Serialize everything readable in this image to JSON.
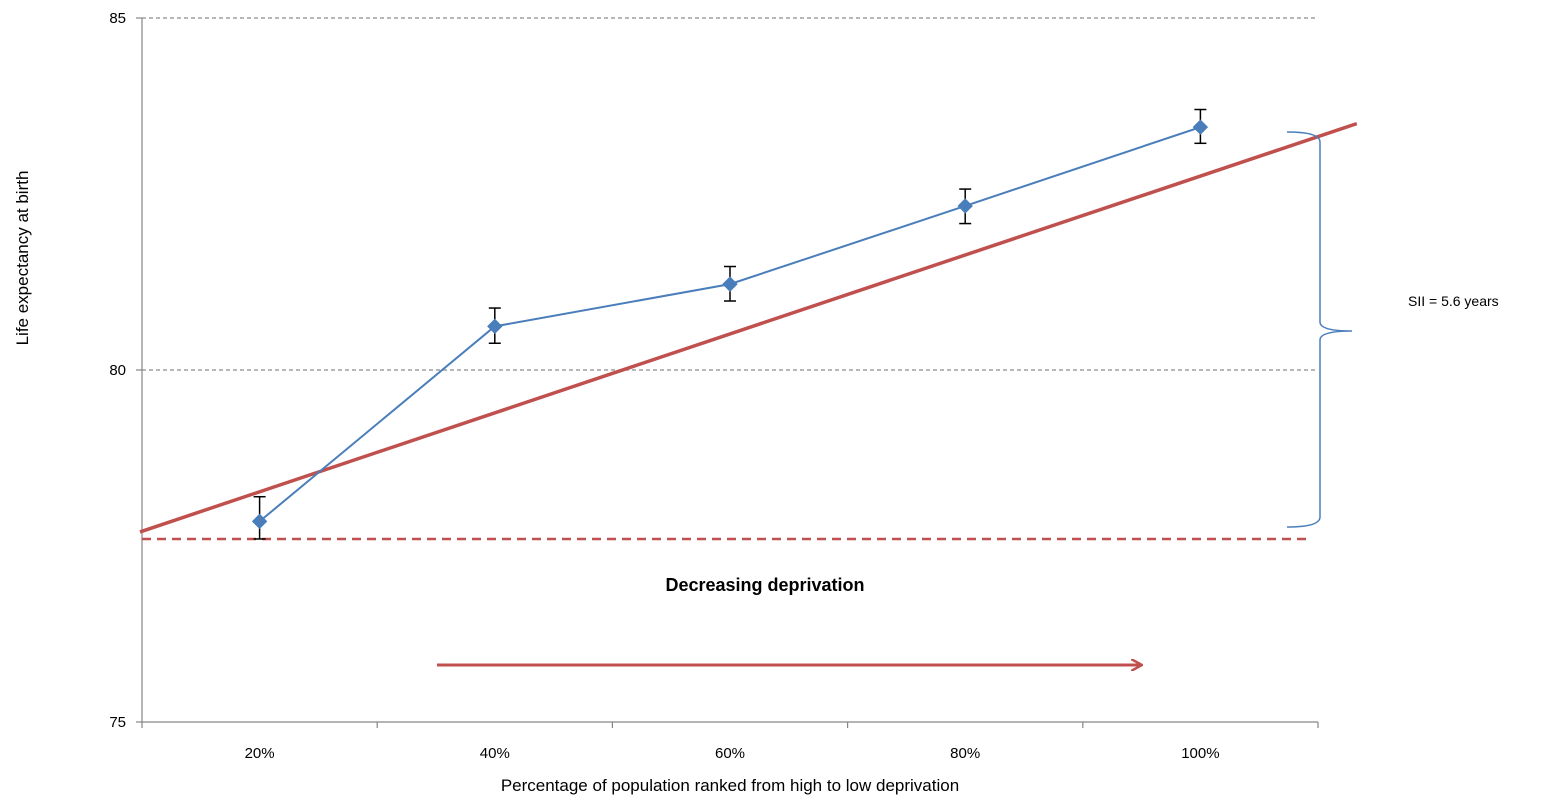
{
  "chart_data": {
    "type": "line",
    "xlabel": "Percentage of population ranked from high to low deprivation",
    "ylabel": "Life expectancy at birth",
    "categories": [
      "20%",
      "40%",
      "60%",
      "80%",
      "100%"
    ],
    "ylim": [
      75,
      85
    ],
    "yticks": [
      "75",
      "80",
      "85"
    ],
    "grid": "horizontal dashed at 80 and 85",
    "series": [
      {
        "values": [
          77.85,
          80.62,
          81.22,
          82.33,
          83.45
        ],
        "error_low": [
          77.6,
          80.38,
          80.98,
          82.08,
          83.22
        ],
        "error_high": [
          78.2,
          80.88,
          81.47,
          82.57,
          83.7
        ],
        "color": "#4a7ebb"
      }
    ],
    "fitted_line": {
      "start": {
        "x": 0,
        "y": 77.7
      },
      "end": {
        "x": 1.05,
        "y": 83.5
      },
      "color": "#c0504d"
    },
    "reference_line": {
      "y": 77.6,
      "color": "#c0504d",
      "style": "dashed"
    },
    "annotations": {
      "sii": "SII = 5.6 years",
      "direction": "Decreasing deprivation"
    }
  }
}
